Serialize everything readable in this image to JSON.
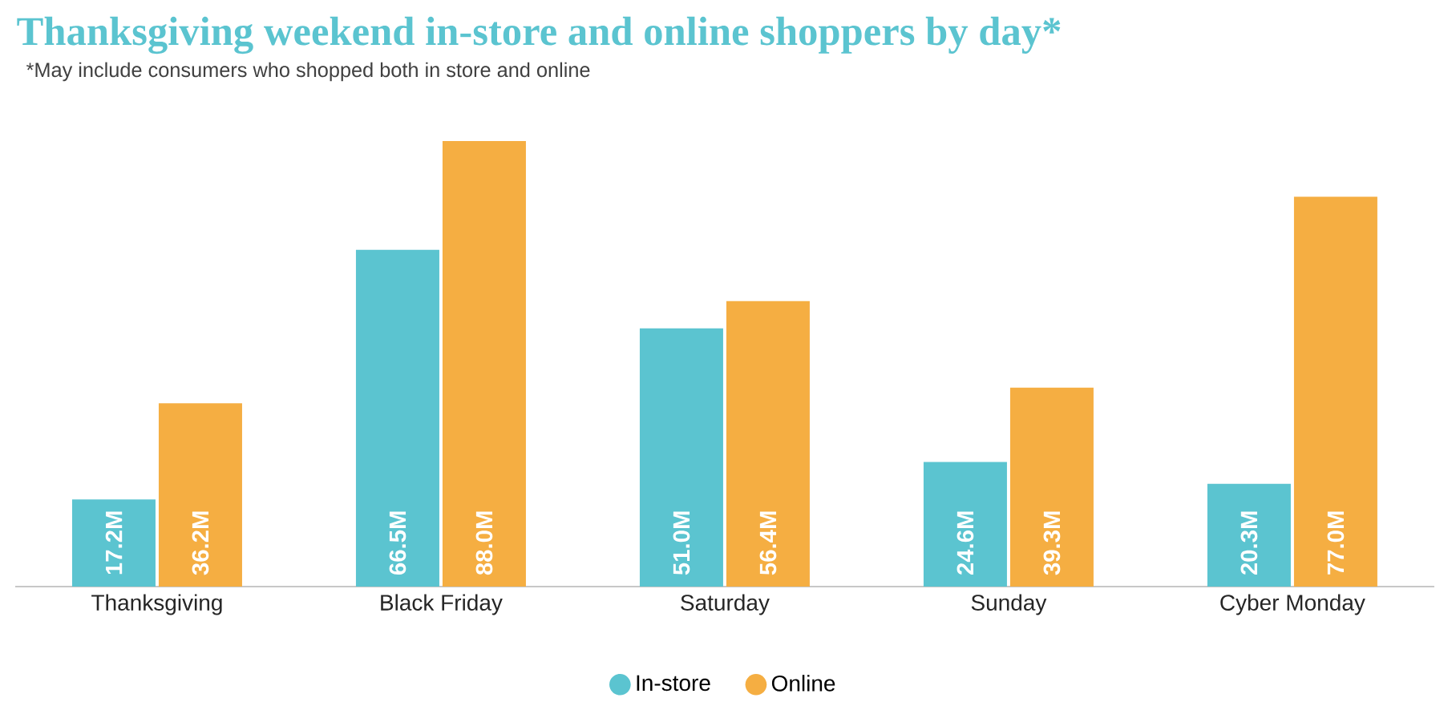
{
  "chart_data": {
    "type": "bar",
    "title": "Thanksgiving weekend in-store and online shoppers by day*",
    "subtitle": "*May include consumers who shopped both in store and online",
    "categories": [
      "Thanksgiving",
      "Black Friday",
      "Saturday",
      "Sunday",
      "Cyber Monday"
    ],
    "series": [
      {
        "name": "In-store",
        "color": "#5bc4d0",
        "values": [
          17.2,
          66.5,
          51.0,
          24.6,
          20.3
        ],
        "value_labels": [
          "17.2M",
          "66.5M",
          "51.0M",
          "24.6M",
          "20.3M"
        ]
      },
      {
        "name": "Online",
        "color": "#f5ae42",
        "values": [
          36.2,
          88.0,
          56.4,
          39.3,
          77.0
        ],
        "value_labels": [
          "36.2M",
          "88.0M",
          "56.4M",
          "39.3M",
          "77.0M"
        ]
      }
    ],
    "legend": "bottom",
    "tick_labels": "x",
    "grid": false
  }
}
